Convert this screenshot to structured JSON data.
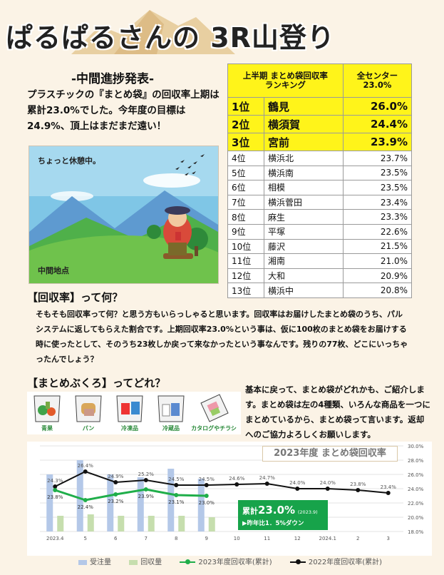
{
  "header": {
    "title": "ぱるぱるさんの 3R山登り",
    "subtitle": "-中間進捗発表-"
  },
  "intro": {
    "text": "プラスチックの『まとめ袋』の回収率上期は累計23.0%でした。今年度の目標は24.9%、頂上はまだまだ遠い！"
  },
  "illustration": {
    "caption_top": "ちょっと休憩中。",
    "caption_bottom": "中間地点"
  },
  "ranking": {
    "header_left": "上半期 まとめ袋回収率\nランキング",
    "header_right": "全センター\n23.0%",
    "rows": [
      {
        "rank": "1位",
        "name": "鶴見",
        "value": "26.0%"
      },
      {
        "rank": "2位",
        "name": "横須賀",
        "value": "24.4%"
      },
      {
        "rank": "3位",
        "name": "宮前",
        "value": "23.9%"
      },
      {
        "rank": "4位",
        "name": "横浜北",
        "value": "23.7%"
      },
      {
        "rank": "5位",
        "name": "横浜南",
        "value": "23.5%"
      },
      {
        "rank": "6位",
        "name": "相模",
        "value": "23.5%"
      },
      {
        "rank": "7位",
        "name": "横浜菅田",
        "value": "23.4%"
      },
      {
        "rank": "8位",
        "name": "麻生",
        "value": "23.3%"
      },
      {
        "rank": "9位",
        "name": "平塚",
        "value": "22.6%"
      },
      {
        "rank": "10位",
        "name": "藤沢",
        "value": "21.5%"
      },
      {
        "rank": "11位",
        "name": "湘南",
        "value": "21.0%"
      },
      {
        "rank": "12位",
        "name": "大和",
        "value": "20.9%"
      },
      {
        "rank": "13位",
        "name": "横浜中",
        "value": "20.8%"
      }
    ]
  },
  "section1": {
    "heading": "【回収率】って何？",
    "body": "そもそも回収率って何？と思う方もいらっしゃると思います。回収率はお届けしたまとめ袋のうち、パルシステムに返してもらえた割合です。上期回収率23.0%という事は、仮に100枚のまとめ袋をお届けする時に使ったとして、そのうち23枚しか戻って来なかったという事なんです。残りの77枚、どこにいっちゃったんでしょう？"
  },
  "section2": {
    "heading": "【まとめぶくろ】ってどれ？",
    "bags": [
      {
        "label": "青果",
        "icon": "produce-bag-icon"
      },
      {
        "label": "パン",
        "icon": "bread-bag-icon"
      },
      {
        "label": "冷凍品",
        "icon": "frozen-bag-icon"
      },
      {
        "label": "冷蔵品",
        "icon": "chilled-bag-icon"
      },
      {
        "label": "カタログやチラシ",
        "icon": "catalog-bag-icon"
      }
    ],
    "body": "基本に戻って、まとめ袋がどれかも、ご紹介します。まとめ袋は左の4種類、いろんな商品を一つにまとめているから、まとめ袋って言います。返却へのご協力よろしくお願いします。"
  },
  "colors": {
    "order_bar": "#b4c8e8",
    "return_bar": "#c6deae",
    "line_2023": "#1fae4a",
    "line_2022": "#111111",
    "highlight": "#fff41a"
  },
  "chart_data": {
    "type": "bar",
    "title": "2023年度 まとめ袋回収率",
    "categories": [
      "2023.4",
      "5",
      "6",
      "7",
      "8",
      "9",
      "10",
      "11",
      "12",
      "2024.1",
      "2",
      "3"
    ],
    "series": [
      {
        "name": "受注量",
        "type": "bar",
        "axis": "left",
        "values": [
          40,
          50,
          40,
          38,
          44,
          37,
          null,
          null,
          null,
          null,
          null,
          null
        ]
      },
      {
        "name": "回収量",
        "type": "bar",
        "axis": "left",
        "values": [
          11,
          12,
          11,
          11,
          11,
          10,
          null,
          null,
          null,
          null,
          null,
          null
        ]
      },
      {
        "name": "2023年度回収率(累計)",
        "type": "line",
        "axis": "right",
        "values": [
          23.8,
          22.4,
          23.2,
          23.9,
          23.1,
          23.0,
          null,
          null,
          null,
          null,
          null,
          null
        ],
        "labels": [
          "23.8%",
          "22.4%",
          "23.2%",
          "23.9%",
          "23.1%",
          "23.0%"
        ]
      },
      {
        "name": "2022年度回収率(累計)",
        "type": "line",
        "axis": "right",
        "values": [
          24.3,
          26.4,
          24.9,
          25.2,
          24.5,
          24.5,
          24.6,
          24.7,
          24.0,
          24.0,
          23.8,
          23.4
        ],
        "labels": [
          "24.3%",
          "26.4%",
          "24.9%",
          "25.2%",
          "24.5%",
          "24.5%",
          "24.6%",
          "24.7%",
          "24.0%",
          "24.0%",
          "23.8%",
          "23.4%"
        ]
      }
    ],
    "y2_ticks": [
      "30.0%",
      "28.0%",
      "26.0%",
      "24.0%",
      "22.0%",
      "20.0%",
      "18.0%"
    ],
    "y2lim": [
      18,
      30
    ],
    "ylim": [
      0,
      60
    ],
    "callout": {
      "main": "累計",
      "value": "23.0%",
      "note": "(2023.9)",
      "sub": "▶昨年比1．5%ダウン"
    },
    "legend_position": "bottom"
  }
}
